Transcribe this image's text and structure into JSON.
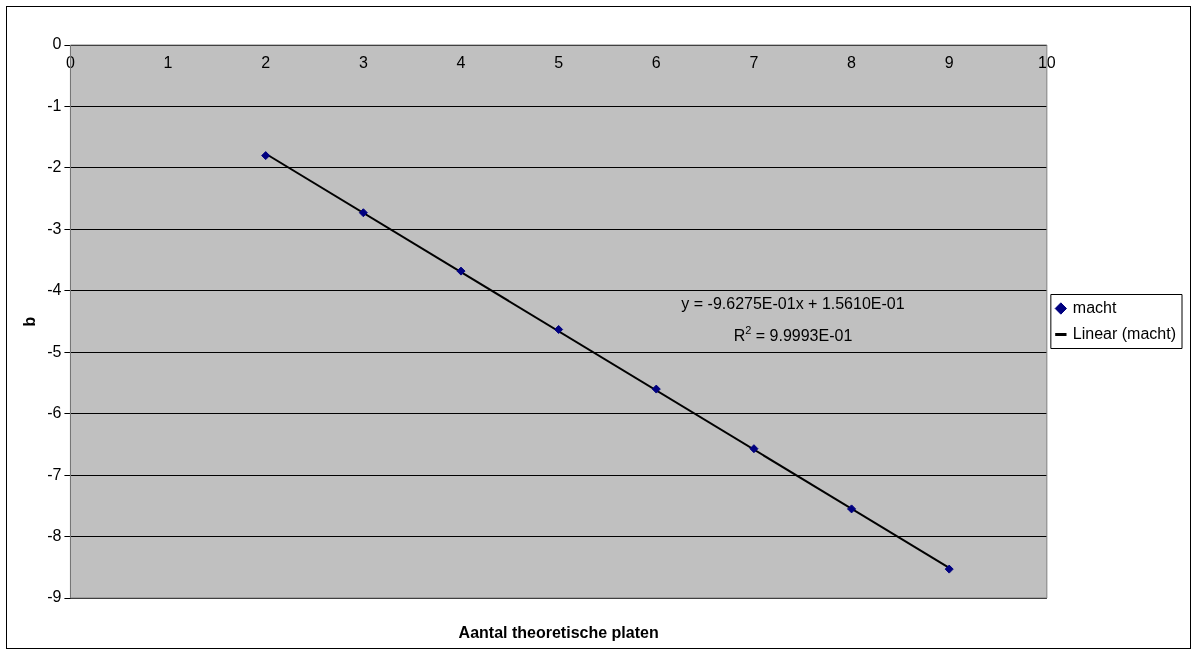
{
  "chart_data": {
    "type": "scatter",
    "xlabel": "Aantal theoretische platen",
    "ylabel": "b",
    "x": [
      2,
      3,
      4,
      5,
      6,
      7,
      8,
      9
    ],
    "series": [
      {
        "name": "macht",
        "type": "scatter",
        "color": "#000080",
        "marker": "diamond",
        "values": [
          -1.8,
          -2.73,
          -3.68,
          -4.63,
          -5.6,
          -6.57,
          -7.55,
          -8.53
        ]
      },
      {
        "name": "Linear (macht)",
        "type": "line",
        "color": "#000000",
        "marker": "none",
        "x": [
          2,
          9
        ],
        "values": [
          -1.77,
          -8.51
        ]
      }
    ],
    "xlim": [
      0,
      10
    ],
    "xticks": [
      0,
      1,
      2,
      3,
      4,
      5,
      6,
      7,
      8,
      9,
      10
    ],
    "ylim": [
      -9,
      0
    ],
    "yticks": [
      -9,
      -8,
      -7,
      -6,
      -5,
      -4,
      -3,
      -2,
      -1,
      0
    ],
    "grid": "y",
    "legend": "right",
    "annotations": [
      "y = -9.6275E-01x + 1.5610E-01",
      "R$^{2}$ = 9.9993E-01"
    ]
  }
}
